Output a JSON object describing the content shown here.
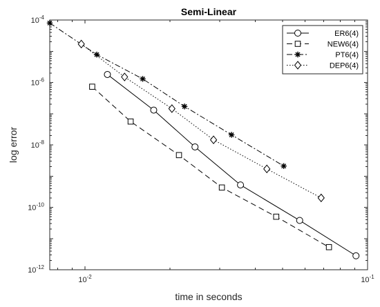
{
  "chart_data": {
    "type": "line",
    "title": "Semi-Linear",
    "xlabel": "time in seconds",
    "ylabel": "log error",
    "x_scale": "log",
    "y_scale": "log",
    "xlim": [
      0.0075,
      0.1
    ],
    "ylim": [
      1e-12,
      0.0001
    ],
    "x_ticks": [
      {
        "value": 0.01,
        "base": "10",
        "exp": "-2"
      },
      {
        "value": 0.1,
        "base": "10",
        "exp": "-1"
      }
    ],
    "y_ticks": [
      {
        "value": 1e-12,
        "base": "10",
        "exp": "-12"
      },
      {
        "value": 1e-10,
        "base": "10",
        "exp": "-10"
      },
      {
        "value": 1e-08,
        "base": "10",
        "exp": "-8"
      },
      {
        "value": 1e-06,
        "base": "10",
        "exp": "-6"
      },
      {
        "value": 0.0001,
        "base": "10",
        "exp": "-4"
      }
    ],
    "grid": false,
    "legend_position": "top-right",
    "series": [
      {
        "name": "ER6(4)",
        "marker": "circle",
        "dash": "solid",
        "color": "#000000",
        "x": [
          0.012,
          0.0175,
          0.0245,
          0.0355,
          0.0575,
          0.091
        ],
        "y": [
          1.8e-06,
          1.3e-07,
          8.6e-09,
          5.2e-10,
          3.8e-11,
          2.8e-12
        ]
      },
      {
        "name": "NEW6(4)",
        "marker": "square",
        "dash": "dashed",
        "color": "#000000",
        "x": [
          0.0106,
          0.0145,
          0.0215,
          0.0305,
          0.0475,
          0.073
        ],
        "y": [
          7.3e-07,
          5.6e-08,
          4.7e-09,
          4.3e-10,
          5e-11,
          5.3e-12
        ]
      },
      {
        "name": "PT6(4)",
        "marker": "asterisk",
        "dash": "dashdot",
        "color": "#000000",
        "x": [
          0.0075,
          0.011,
          0.016,
          0.0225,
          0.033,
          0.0505
        ],
        "y": [
          8e-05,
          7.8e-06,
          1.3e-06,
          1.7e-07,
          2.1e-08,
          2.1e-09
        ]
      },
      {
        "name": "DEP6(4)",
        "marker": "diamond",
        "dash": "dotted",
        "color": "#000000",
        "x": [
          0.0097,
          0.0138,
          0.0203,
          0.0285,
          0.044,
          0.0685
        ],
        "y": [
          1.7e-05,
          1.5e-06,
          1.45e-07,
          1.45e-08,
          1.7e-09,
          2e-10
        ]
      }
    ]
  }
}
